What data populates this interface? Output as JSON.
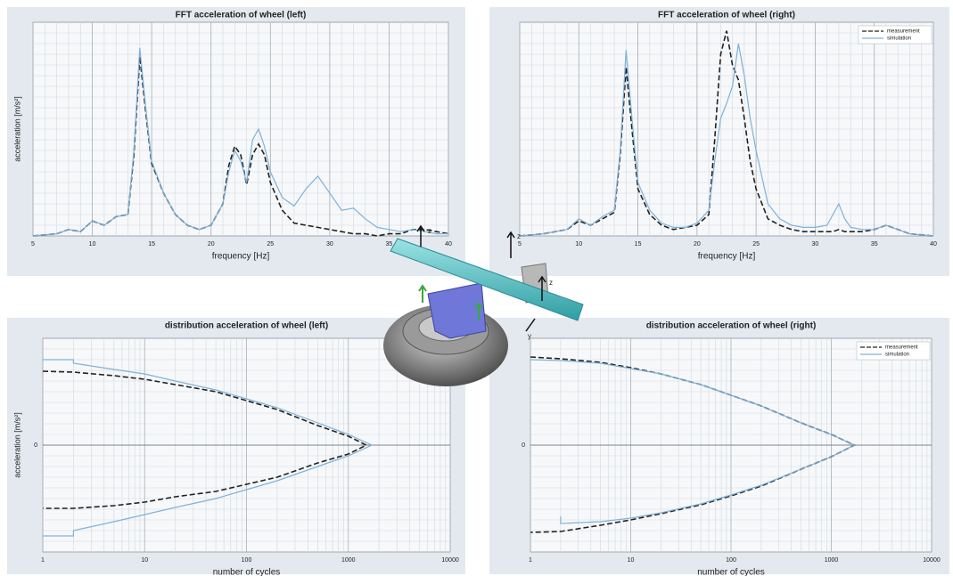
{
  "chart_data": [
    {
      "type": "line",
      "title": "FFT acceleration of wheel (left)",
      "xlabel": "frequency [Hz]",
      "ylabel": "acceleration [m/s²]",
      "x": [
        5,
        7,
        8,
        9,
        10,
        11,
        12,
        13,
        13.5,
        14,
        14.5,
        15,
        16,
        17,
        18,
        19,
        20,
        21,
        21.5,
        22,
        22.5,
        23,
        23.5,
        24,
        24.5,
        25,
        26,
        27,
        28,
        29,
        30,
        31,
        32,
        33,
        34,
        35,
        36,
        37,
        38,
        39,
        40
      ],
      "series": [
        {
          "name": "measurement",
          "color": "#222222",
          "linestyle": "dashed",
          "values": [
            0,
            1,
            3,
            2,
            7,
            5,
            9,
            10,
            38,
            84,
            58,
            34,
            20,
            10,
            5,
            3,
            5,
            15,
            33,
            42,
            38,
            24,
            38,
            43,
            38,
            25,
            12,
            6,
            5,
            4,
            3,
            2,
            1,
            1,
            0,
            1,
            1,
            3,
            3,
            2,
            1
          ]
        },
        {
          "name": "simulation",
          "color": "#7fb2d8",
          "linestyle": "solid",
          "values": [
            0,
            1,
            3,
            2,
            7,
            5,
            9,
            10,
            40,
            88,
            60,
            35,
            20,
            10,
            5,
            3,
            5,
            15,
            30,
            40,
            35,
            25,
            45,
            50,
            42,
            30,
            18,
            14,
            22,
            28,
            20,
            12,
            13,
            8,
            4,
            3,
            2,
            3,
            2,
            1,
            1
          ]
        }
      ],
      "xlim": [
        5,
        40
      ],
      "xticks": [
        5,
        10,
        15,
        20,
        25,
        30,
        35,
        40
      ],
      "ylim": [
        0,
        100
      ],
      "grid": true
    },
    {
      "type": "line",
      "title": "FFT acceleration of wheel (right)",
      "xlabel": "frequency [Hz]",
      "x": [
        5,
        7,
        9,
        10,
        11,
        12,
        13,
        13.5,
        14,
        14.5,
        15,
        16,
        17,
        18,
        19,
        20,
        21,
        21.5,
        22,
        22.5,
        23,
        23.5,
        24,
        24.5,
        25,
        26,
        27,
        28,
        29,
        30,
        31,
        31.5,
        32,
        32.5,
        33,
        34,
        35,
        36,
        37,
        38,
        40
      ],
      "series": [
        {
          "name": "measurement",
          "color": "#222222",
          "linestyle": "dashed",
          "values": [
            0,
            1,
            3,
            7,
            5,
            8,
            11,
            38,
            79,
            50,
            22,
            10,
            5,
            3,
            4,
            5,
            10,
            45,
            85,
            96,
            80,
            73,
            55,
            35,
            22,
            8,
            5,
            3,
            2,
            2,
            2,
            2,
            3,
            2,
            2,
            2,
            3,
            5,
            3,
            1,
            0
          ]
        },
        {
          "name": "simulation",
          "color": "#7fb2d8",
          "linestyle": "solid",
          "values": [
            0,
            1,
            3,
            8,
            5,
            9,
            12,
            40,
            87,
            55,
            25,
            12,
            6,
            4,
            4,
            6,
            12,
            35,
            55,
            62,
            70,
            90,
            75,
            55,
            40,
            15,
            8,
            5,
            4,
            4,
            5,
            10,
            15,
            8,
            4,
            3,
            3,
            5,
            3,
            1,
            0
          ]
        }
      ],
      "xlim": [
        5,
        40
      ],
      "xticks": [
        5,
        10,
        15,
        20,
        25,
        30,
        35,
        40
      ],
      "ylim": [
        0,
        100
      ],
      "grid": true,
      "legend": "upper right"
    },
    {
      "type": "line",
      "title": "distribution acceleration of wheel (left)",
      "xlabel": "number of cycles",
      "ylabel": "acceleration [m/s²]",
      "series": [
        {
          "name": "measurement",
          "color": "#222222",
          "linestyle": "dashed",
          "x": [
            1,
            2,
            5,
            10,
            20,
            50,
            100,
            200,
            500,
            1000,
            1500,
            1000,
            500,
            200,
            100,
            50,
            20,
            10,
            5,
            2,
            1
          ],
          "values": [
            0.83,
            0.82,
            0.78,
            0.74,
            0.68,
            0.6,
            0.5,
            0.4,
            0.22,
            0.1,
            0,
            -0.1,
            -0.2,
            -0.36,
            -0.44,
            -0.52,
            -0.58,
            -0.64,
            -0.68,
            -0.71,
            -0.71
          ]
        },
        {
          "name": "simulation",
          "color": "#7fb2d8",
          "linestyle": "solid",
          "x": [
            1,
            2,
            2,
            5,
            10,
            20,
            50,
            100,
            200,
            500,
            1000,
            1700,
            1000,
            500,
            200,
            100,
            50,
            20,
            10,
            5,
            2,
            2,
            1
          ],
          "values": [
            0.96,
            0.96,
            0.92,
            0.85,
            0.8,
            0.72,
            0.62,
            0.52,
            0.42,
            0.25,
            0.12,
            0,
            -0.12,
            -0.24,
            -0.4,
            -0.5,
            -0.6,
            -0.7,
            -0.78,
            -0.86,
            -0.96,
            -1.02,
            -1.02
          ]
        }
      ],
      "log_x": true,
      "xlim": [
        1,
        10000
      ],
      "xticks": [
        1,
        10,
        100,
        1000,
        10000
      ],
      "ylim": [
        -1.2,
        1.2
      ],
      "yticks": [
        0
      ],
      "grid": true
    },
    {
      "type": "line",
      "title": "distribution acceleration of wheel (right)",
      "xlabel": "number of cycles",
      "series": [
        {
          "name": "measurement",
          "color": "#222222",
          "linestyle": "dashed",
          "x": [
            1,
            2,
            5,
            10,
            20,
            50,
            100,
            200,
            500,
            1000,
            1700,
            1000,
            500,
            200,
            100,
            50,
            20,
            10,
            5,
            2,
            1
          ],
          "values": [
            0.99,
            0.97,
            0.93,
            0.87,
            0.8,
            0.68,
            0.56,
            0.44,
            0.25,
            0.12,
            0,
            -0.13,
            -0.27,
            -0.46,
            -0.57,
            -0.67,
            -0.77,
            -0.84,
            -0.9,
            -0.97,
            -0.98
          ]
        },
        {
          "name": "simulation",
          "color": "#7fb2d8",
          "linestyle": "solid",
          "x": [
            1,
            2,
            5,
            10,
            20,
            50,
            100,
            200,
            500,
            1000,
            1700,
            1000,
            500,
            200,
            100,
            50,
            20,
            10,
            5,
            2,
            2
          ],
          "values": [
            0.96,
            0.95,
            0.92,
            0.86,
            0.8,
            0.68,
            0.56,
            0.44,
            0.25,
            0.12,
            0,
            -0.13,
            -0.27,
            -0.45,
            -0.56,
            -0.66,
            -0.76,
            -0.82,
            -0.86,
            -0.88,
            -0.8
          ]
        }
      ],
      "log_x": true,
      "xlim": [
        1,
        10000
      ],
      "xticks": [
        1,
        10,
        100,
        1000,
        10000
      ],
      "ylim": [
        -1.2,
        1.2
      ],
      "yticks": [
        0
      ],
      "grid": true,
      "legend": "upper right"
    }
  ],
  "illustration": {
    "axis_labels": [
      "z",
      "z",
      "z",
      "y"
    ]
  }
}
